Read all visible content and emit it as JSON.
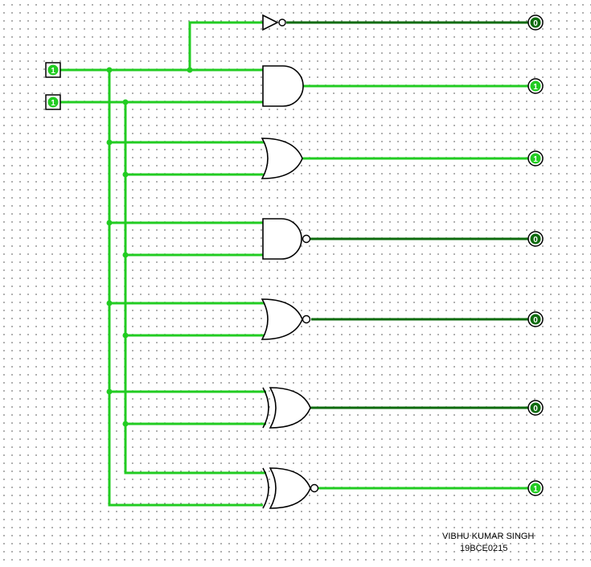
{
  "diagram": {
    "colors": {
      "wire_on": "#22cc22",
      "wire_off": "#0e6b0e",
      "gate_stroke": "#000000"
    },
    "inputs": [
      {
        "id": "A",
        "value": "1"
      },
      {
        "id": "B",
        "value": "1"
      }
    ],
    "gates": [
      {
        "type": "not",
        "output_value": "0"
      },
      {
        "type": "and",
        "output_value": "1"
      },
      {
        "type": "or",
        "output_value": "1"
      },
      {
        "type": "nand",
        "output_value": "0"
      },
      {
        "type": "nor",
        "output_value": "0"
      },
      {
        "type": "xor",
        "output_value": "0"
      },
      {
        "type": "xnor",
        "output_value": "1"
      }
    ]
  },
  "author": {
    "name": "VIBHU KUMAR SINGH",
    "id": "19BCE0215"
  }
}
